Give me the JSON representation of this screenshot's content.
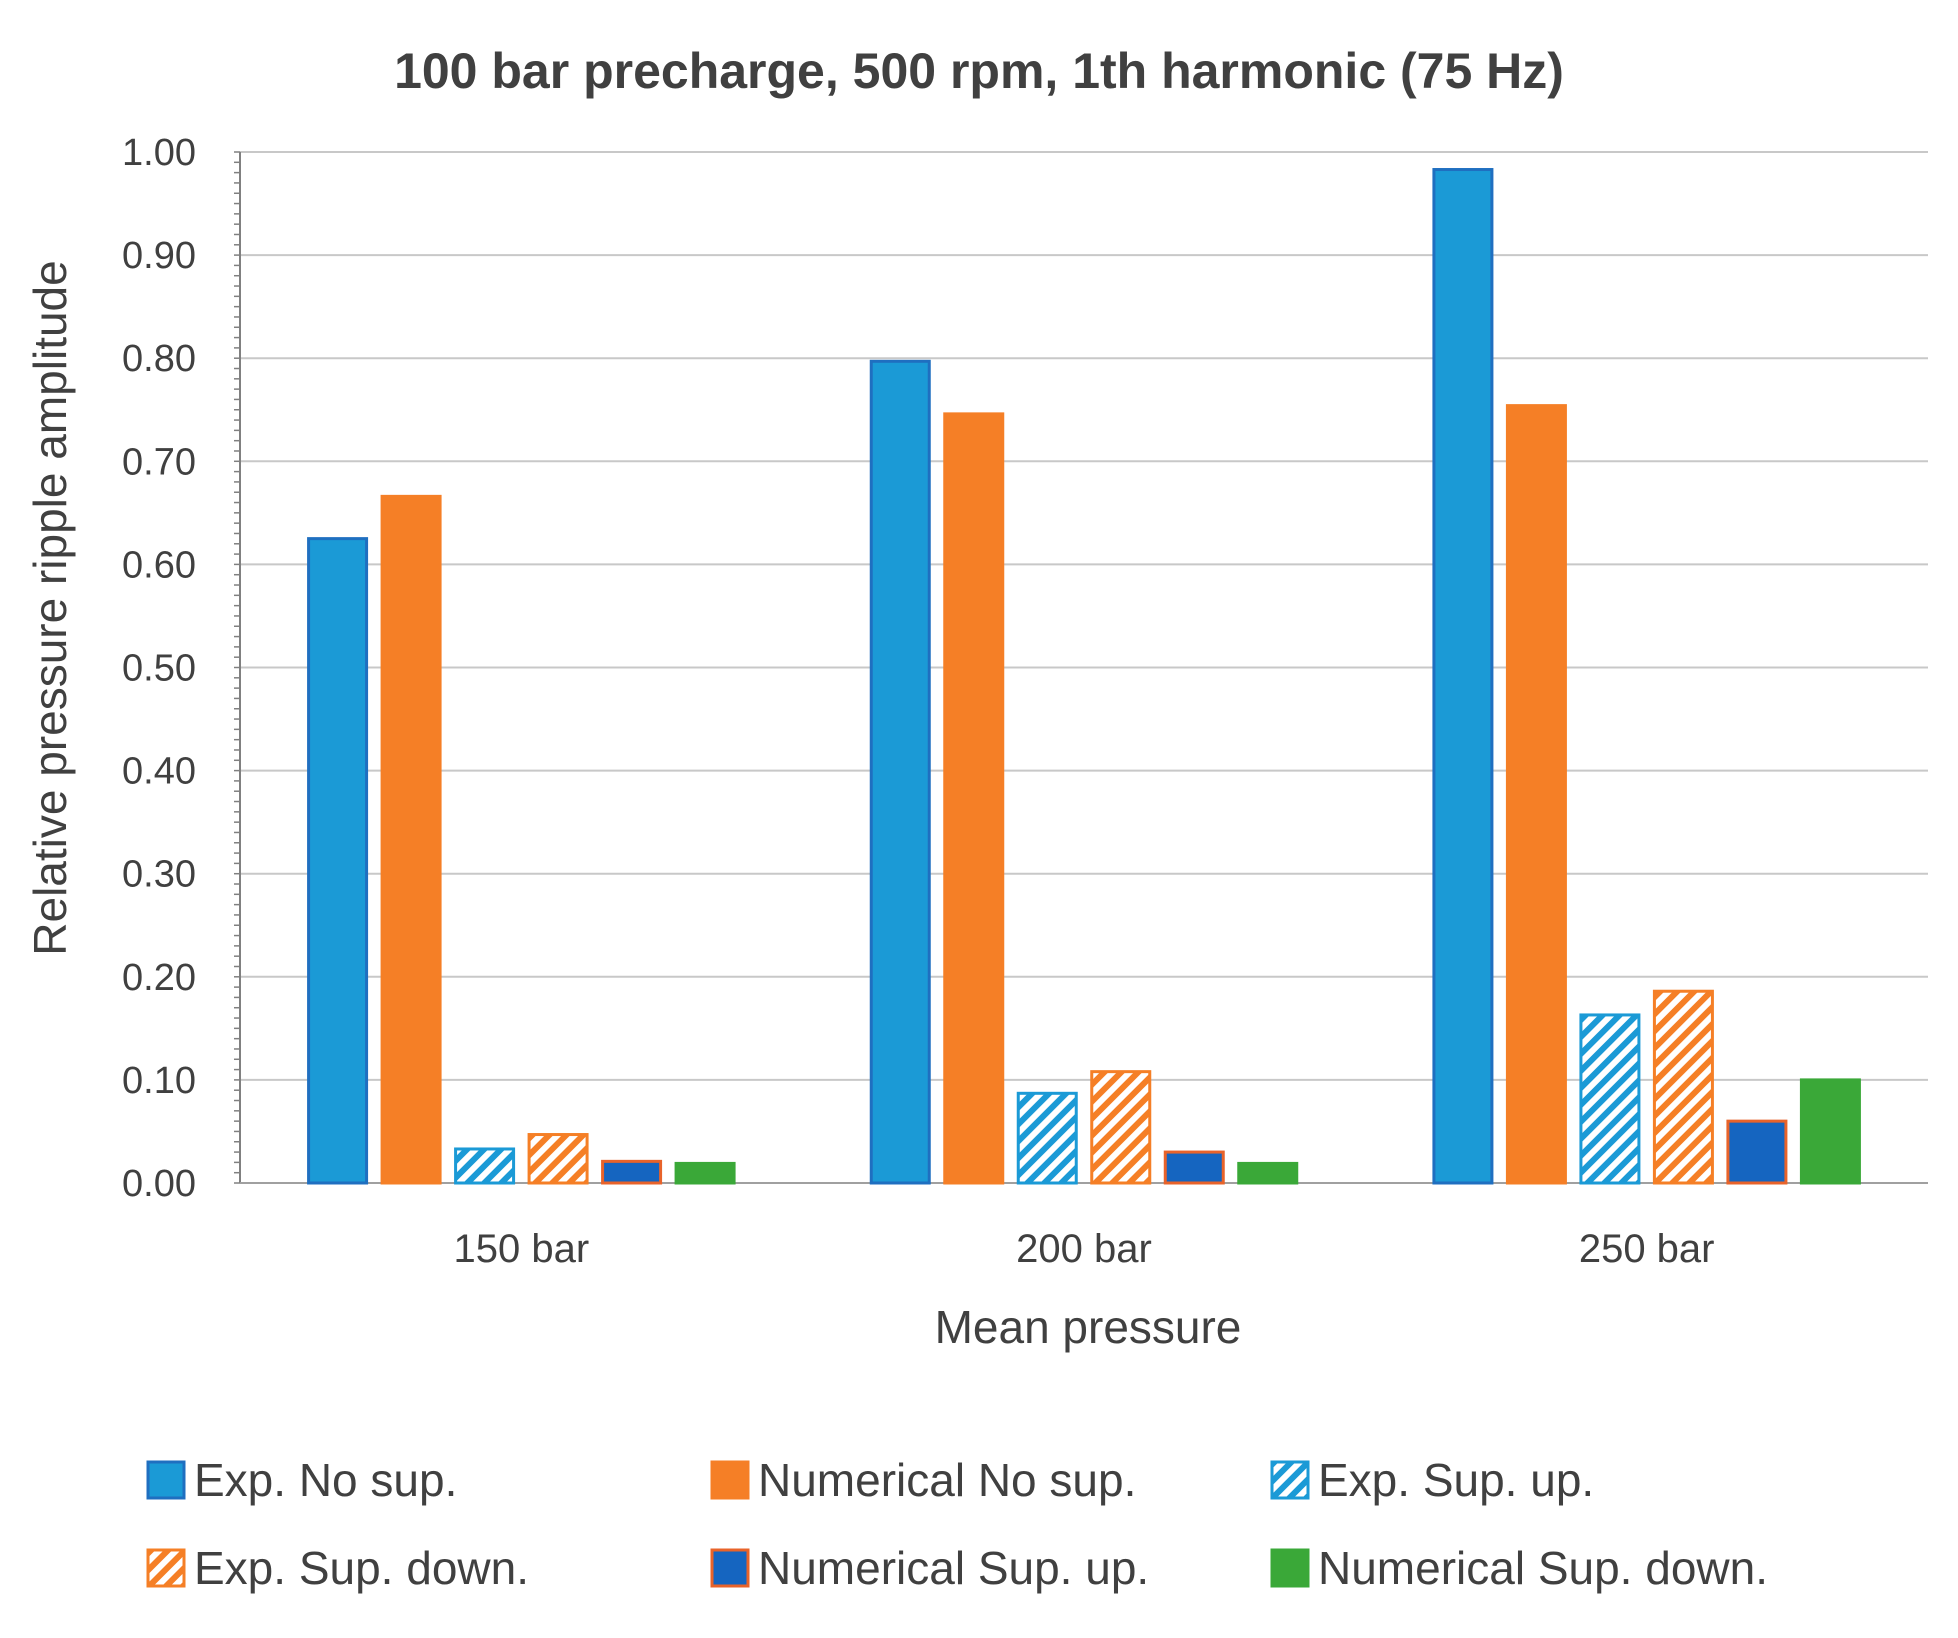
{
  "chart_data": {
    "type": "bar",
    "title": "100 bar precharge, 500 rpm, 1th harmonic  (75 Hz)",
    "xlabel": "Mean pressure",
    "ylabel": "Relative pressure ripple amplitude",
    "ylim": [
      0,
      1.0
    ],
    "yticks": [
      "0.00",
      "0.10",
      "0.20",
      "0.30",
      "0.40",
      "0.50",
      "0.60",
      "0.70",
      "0.80",
      "0.90",
      "1.00"
    ],
    "grid": true,
    "legend_position": "bottom",
    "categories": [
      "150 bar",
      "200 bar",
      "250 bar"
    ],
    "series": [
      {
        "name": "Exp. No sup.",
        "values": [
          0.625,
          0.797,
          0.983
        ],
        "fill": "#1b9ad6",
        "edge": "#1f6fc0",
        "hatch": false
      },
      {
        "name": "Numerical No sup.",
        "values": [
          0.666,
          0.746,
          0.754
        ],
        "fill": "#f57f26",
        "edge": "#f57f26",
        "hatch": false
      },
      {
        "name": "Exp. Sup. up.",
        "values": [
          0.033,
          0.087,
          0.163
        ],
        "fill": "#1b9ad6",
        "edge": "#1b9ad6",
        "hatch": true
      },
      {
        "name": "Exp. Sup. down.",
        "values": [
          0.047,
          0.108,
          0.186
        ],
        "fill": "#f57f26",
        "edge": "#f57f26",
        "hatch": true
      },
      {
        "name": "Numerical Sup. up.",
        "values": [
          0.021,
          0.03,
          0.06
        ],
        "fill": "#1565c0",
        "edge": "#e8632a",
        "hatch": false
      },
      {
        "name": "Numerical Sup. down.",
        "values": [
          0.019,
          0.019,
          0.1
        ],
        "fill": "#3aa838",
        "edge": "#3aa838",
        "hatch": false
      }
    ]
  }
}
